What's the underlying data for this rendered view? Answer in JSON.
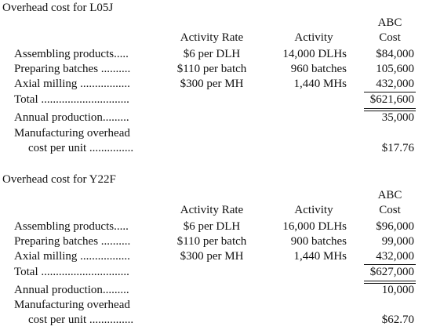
{
  "sections": [
    {
      "title": "Overhead cost for L05J",
      "headers": {
        "abc_line1": "ABC",
        "abc_line2": "Cost",
        "rate": "Activity Rate",
        "activity": "Activity"
      },
      "rows": [
        {
          "label": "Assembling products.....",
          "rate": "$6 per DLH",
          "activity": "14,000 DLHs",
          "cost": "$84,000"
        },
        {
          "label": "Preparing batches ..........",
          "rate": "$110 per batch",
          "activity": "960 batches",
          "cost": "105,600"
        },
        {
          "label": "Axial milling .................",
          "rate": "$300 per MH",
          "activity": "1,440 MHs",
          "cost": "432,000"
        }
      ],
      "total": {
        "label": "Total ..............................",
        "cost": "$621,600"
      },
      "annual": {
        "label": "Annual production.........",
        "value": "35,000"
      },
      "mfg": {
        "label1": "Manufacturing overhead",
        "label2": "cost per unit ...............",
        "value": "$17.76"
      }
    },
    {
      "title": "Overhead cost for Y22F",
      "headers": {
        "abc_line1": "ABC",
        "abc_line2": "Cost",
        "rate": "Activity Rate",
        "activity": "Activity"
      },
      "rows": [
        {
          "label": "Assembling products.....",
          "rate": "$6 per DLH",
          "activity": "16,000 DLHs",
          "cost": "$96,000"
        },
        {
          "label": "Preparing batches ..........",
          "rate": "$110 per batch",
          "activity": "900 batches",
          "cost": "99,000"
        },
        {
          "label": "Axial milling .................",
          "rate": "$300 per MH",
          "activity": "1,440 MHs",
          "cost": "432,000"
        }
      ],
      "total": {
        "label": "Total ..............................",
        "cost": "$627,000"
      },
      "annual": {
        "label": "Annual production.........",
        "value": "10,000"
      },
      "mfg": {
        "label1": "Manufacturing overhead",
        "label2": "cost per unit ...............",
        "value": "$62.70"
      }
    }
  ]
}
